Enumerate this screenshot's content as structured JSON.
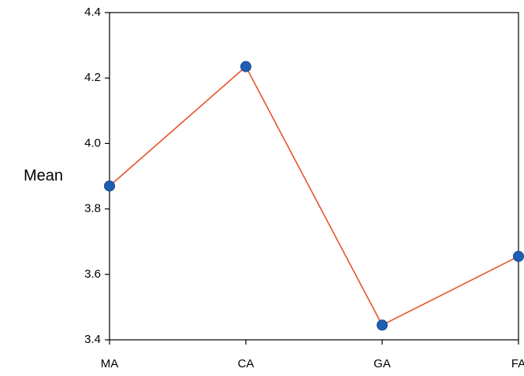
{
  "chart_data": {
    "type": "line",
    "title": "",
    "xlabel": "",
    "ylabel": "Mean",
    "categories": [
      "MA",
      "CA",
      "GA",
      "FA"
    ],
    "series": [
      {
        "values": [
          3.87,
          4.235,
          3.445,
          3.655
        ],
        "line_color": "#e8532b",
        "marker_color": "#1f5fb3"
      }
    ],
    "ylim": [
      3.4,
      4.4
    ],
    "yticks": [
      3.4,
      3.6,
      3.8,
      4.0,
      4.2,
      4.4
    ],
    "ytick_labels": [
      "3.4",
      "3.6",
      "3.8",
      "4.0",
      "4.2",
      "4.4"
    ],
    "grid": false,
    "legend": "none"
  }
}
